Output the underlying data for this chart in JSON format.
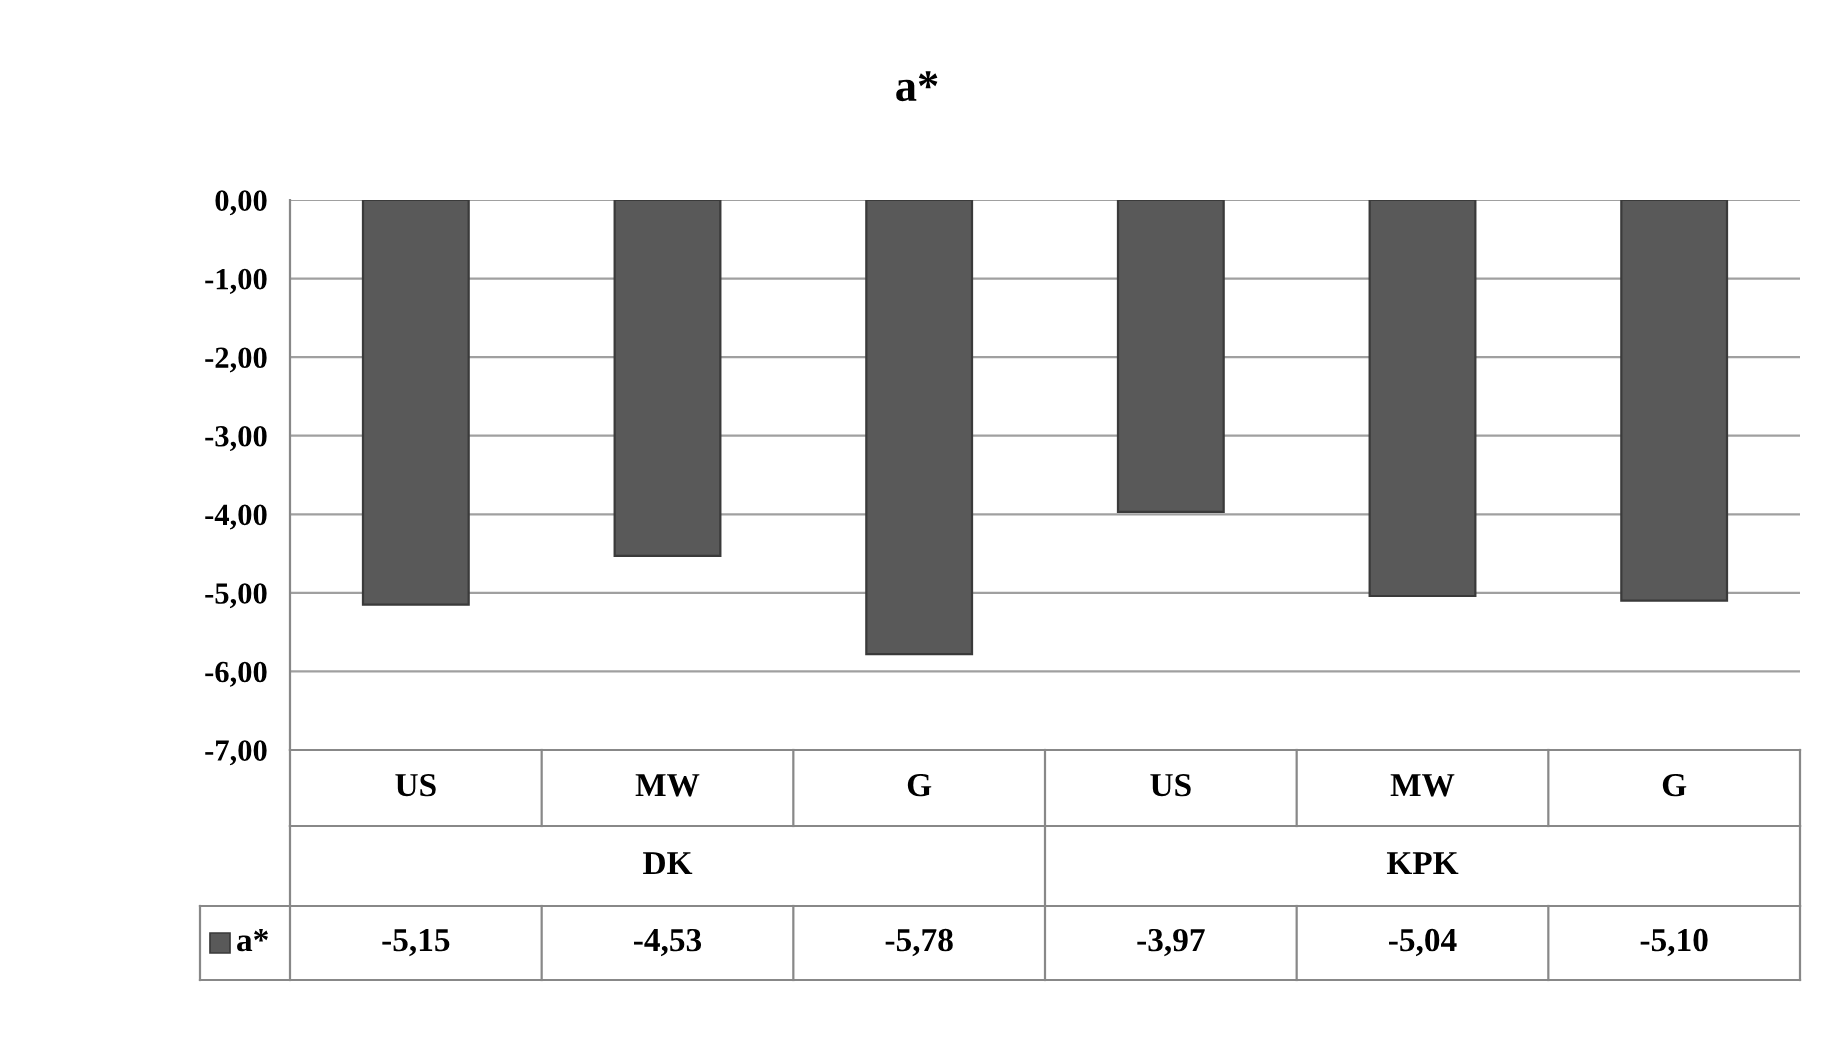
{
  "chart_data": {
    "type": "bar",
    "title": "a*",
    "categories": [
      "US",
      "MW",
      "G",
      "US",
      "MW",
      "G"
    ],
    "annotations": [
      "DK",
      "KPK"
    ],
    "series": [
      {
        "name": "a*",
        "color": "#595959",
        "values": [
          -5.15,
          -4.53,
          -5.78,
          -3.97,
          -5.04,
          -5.1
        ],
        "value_labels": [
          "-5,15",
          "-4,53",
          "-5,78",
          "-3,97",
          "-5,04",
          "-5,10"
        ]
      }
    ],
    "ylim": [
      -7,
      0
    ],
    "yticks": [
      {
        "value": 0,
        "label": "0,00"
      },
      {
        "value": -1,
        "label": "-1,00"
      },
      {
        "value": -2,
        "label": "-2,00"
      },
      {
        "value": -3,
        "label": "-3,00"
      },
      {
        "value": -4,
        "label": "-4,00"
      },
      {
        "value": -5,
        "label": "-5,00"
      },
      {
        "value": -6,
        "label": "-6,00"
      },
      {
        "value": -7,
        "label": "-7,00"
      }
    ],
    "grid": "y",
    "legend": "bottom left"
  }
}
